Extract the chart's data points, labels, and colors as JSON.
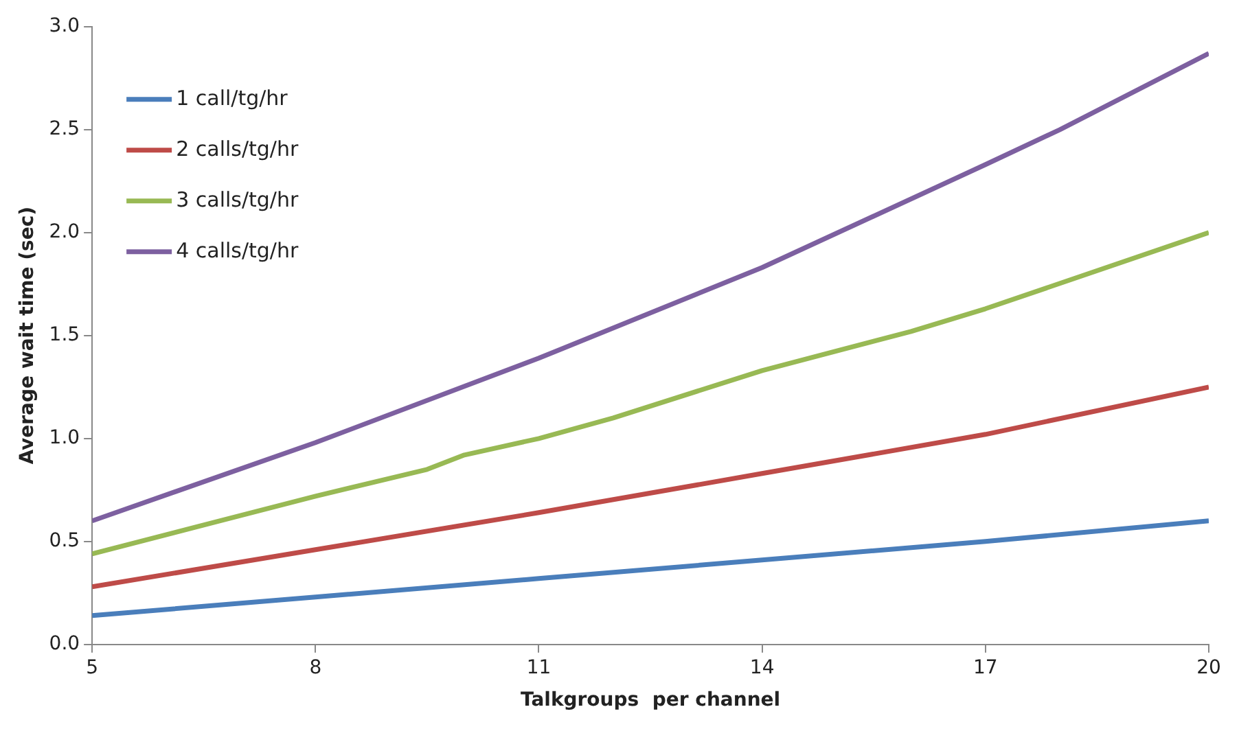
{
  "chart_data": {
    "type": "line",
    "xlabel": "Talkgroups  per channel",
    "ylabel": "Average wait time (sec)",
    "xlim": [
      5,
      20
    ],
    "xticks": [
      5,
      8,
      11,
      14,
      17,
      20
    ],
    "ylim": [
      0,
      3
    ],
    "yticks": [
      {
        "value": 0,
        "label": "0.0"
      },
      {
        "value": 0.5,
        "label": "0.5"
      },
      {
        "value": 1,
        "label": "1.0"
      },
      {
        "value": 1.5,
        "label": "1.5"
      },
      {
        "value": 2,
        "label": "2.0"
      },
      {
        "value": 2.5,
        "label": "2.5"
      },
      {
        "value": 3,
        "label": "3.0"
      }
    ],
    "grid": false,
    "legend": "top left",
    "marker": "none",
    "line_style": "solid",
    "series": [
      {
        "name": "1 call/tg/hr",
        "color": "#4a7ebb",
        "x": [
          5,
          8,
          11,
          14,
          17,
          20
        ],
        "values": [
          0.14,
          0.23,
          0.32,
          0.41,
          0.5,
          0.6
        ]
      },
      {
        "name": "2 calls/tg/hr",
        "color": "#be4b48",
        "x": [
          5,
          8,
          11,
          14,
          17,
          20
        ],
        "values": [
          0.28,
          0.46,
          0.64,
          0.83,
          1.02,
          1.25
        ]
      },
      {
        "name": "3 calls/tg/hr",
        "color": "#98b954",
        "x": [
          5,
          8,
          9.5,
          10,
          11,
          12,
          14,
          16,
          17,
          20
        ],
        "values": [
          0.44,
          0.72,
          0.85,
          0.92,
          1.0,
          1.1,
          1.33,
          1.52,
          1.63,
          2.0
        ]
      },
      {
        "name": "4 calls/tg/hr",
        "color": "#7d60a0",
        "x": [
          5,
          8,
          11,
          14,
          17,
          18,
          20
        ],
        "values": [
          0.6,
          0.98,
          1.39,
          1.83,
          2.33,
          2.5,
          2.87
        ]
      }
    ]
  }
}
